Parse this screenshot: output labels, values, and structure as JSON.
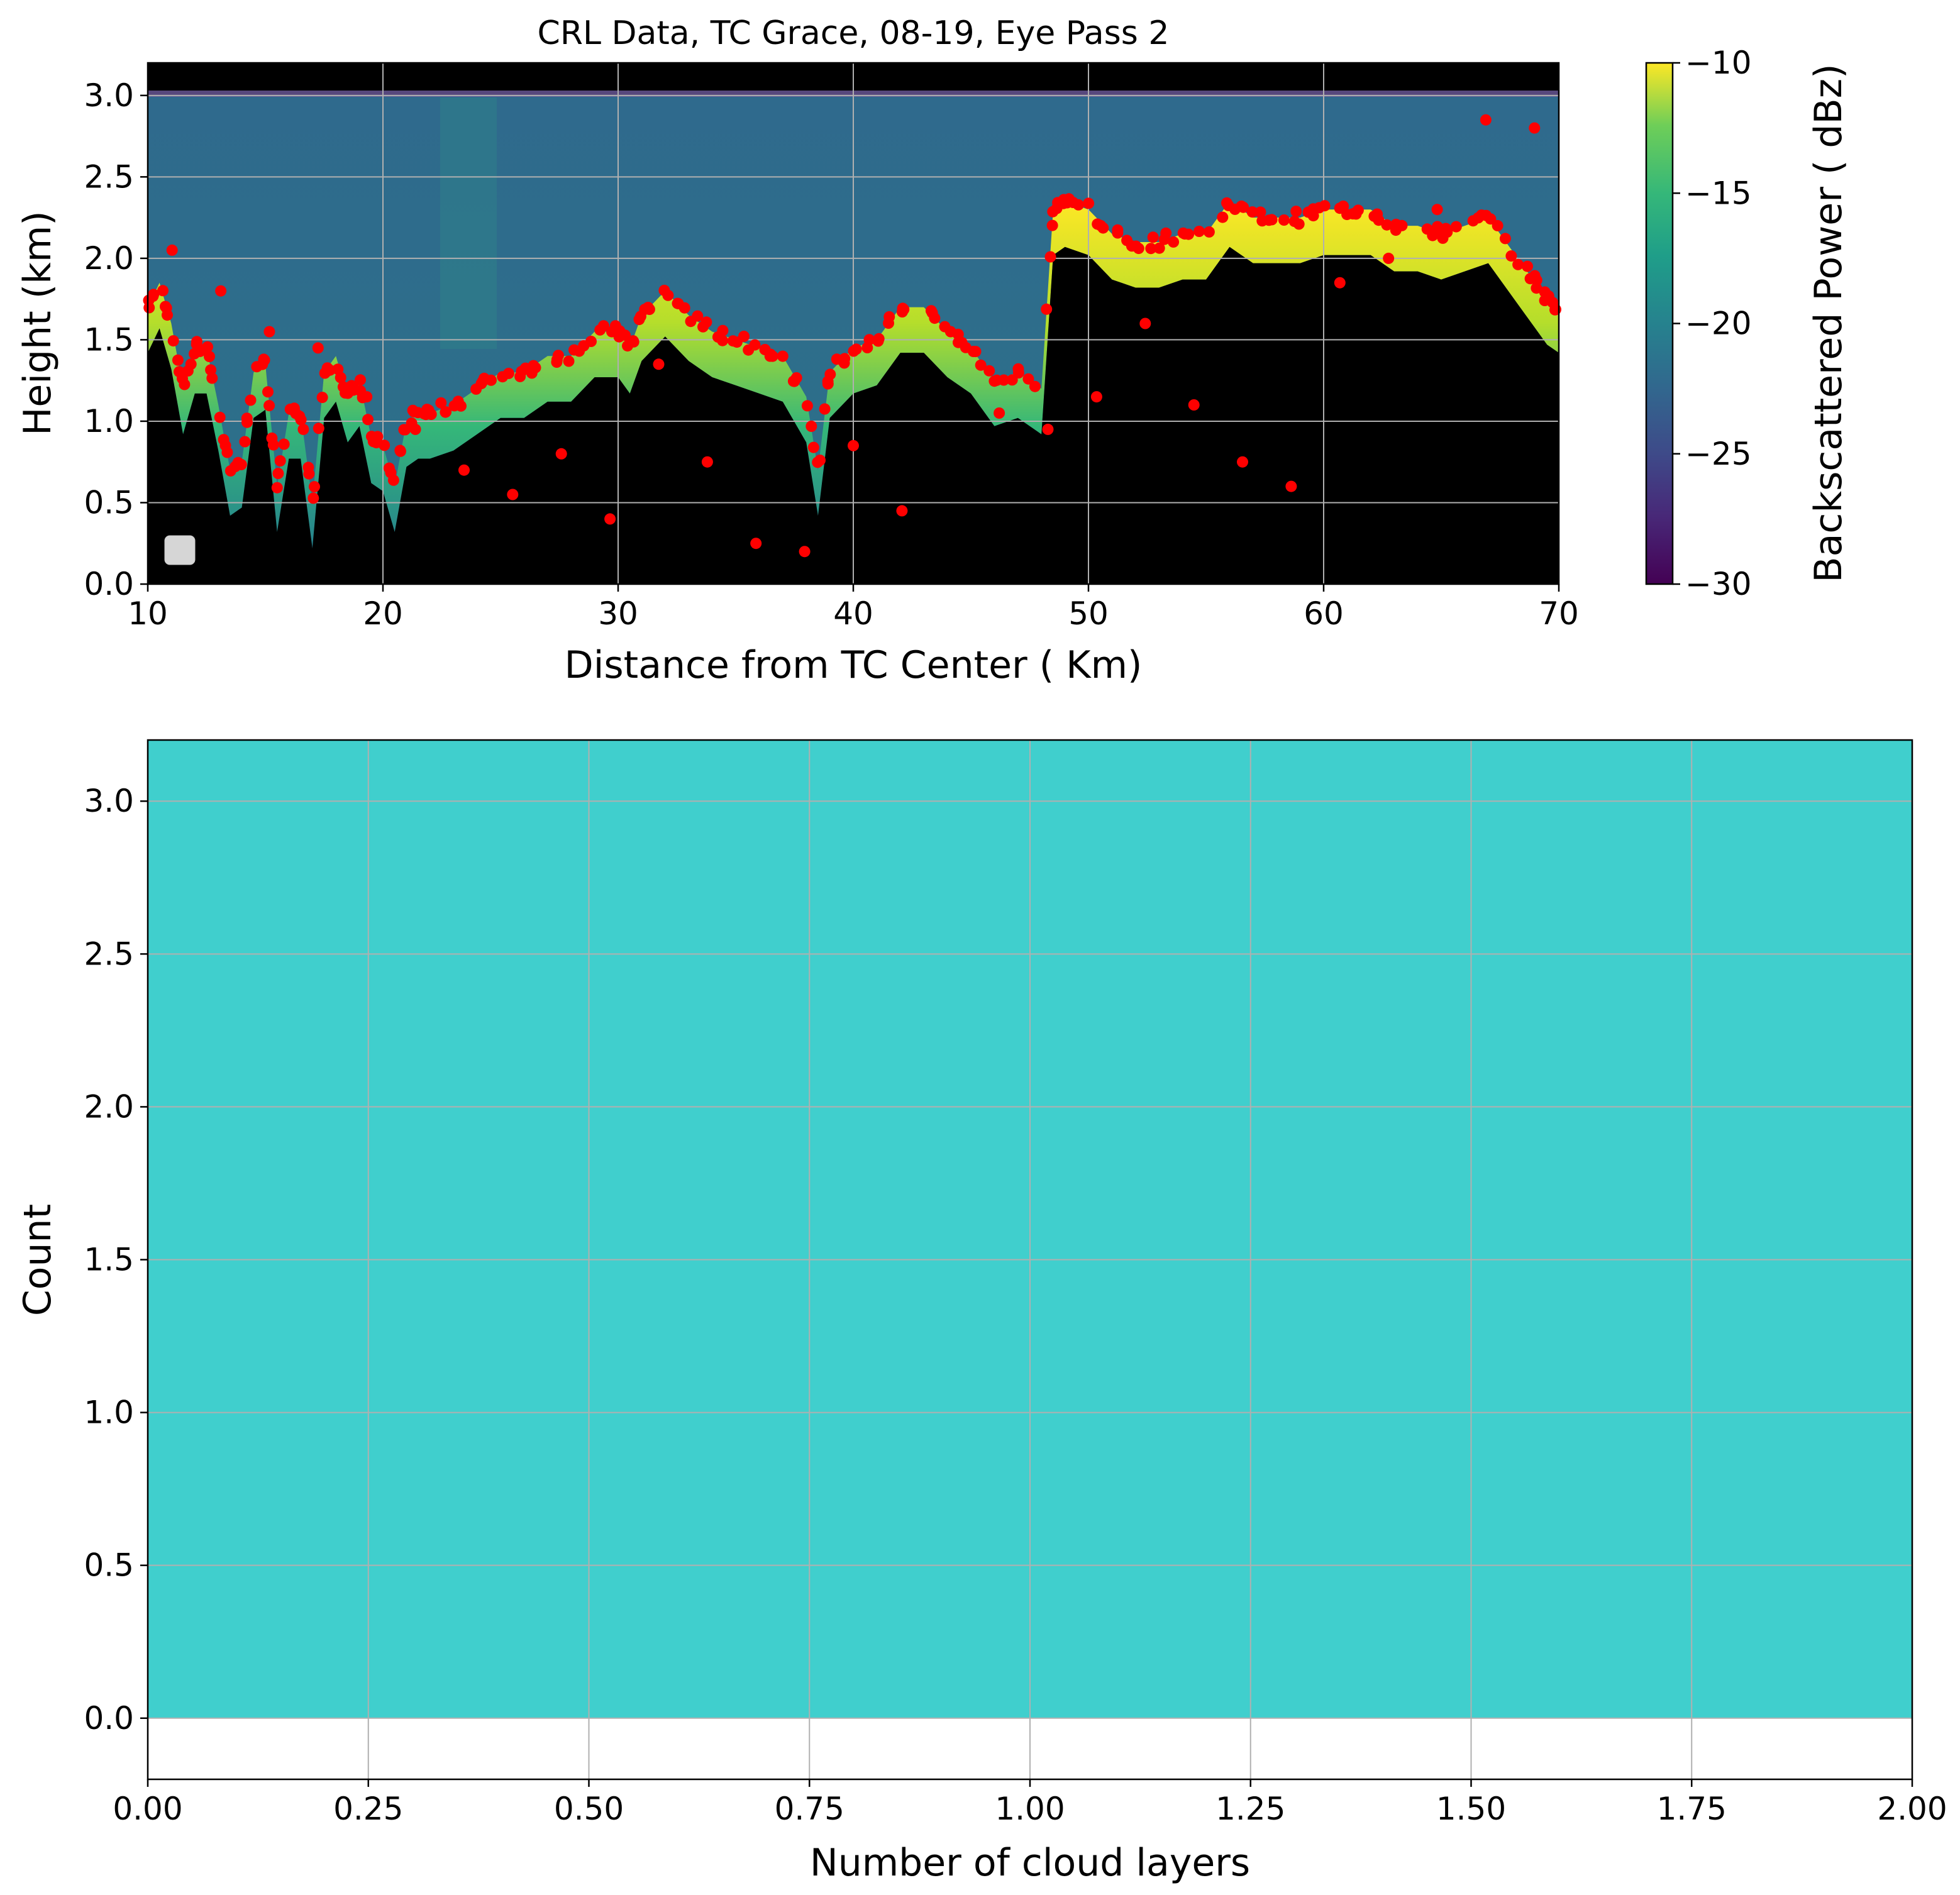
{
  "chart_data": [
    {
      "type": "heatmap",
      "title": "CRL Data, TC Grace, 08-19, Eye Pass 2",
      "xlabel": "Distance from TC Center ( Km)",
      "ylabel": "Height (km)",
      "xlim": [
        10,
        70
      ],
      "ylim": [
        0,
        3.2
      ],
      "xticks": [
        "10",
        "20",
        "30",
        "40",
        "50",
        "60",
        "70"
      ],
      "yticks": [
        "0.0",
        "0.5",
        "1.0",
        "1.5",
        "2.0",
        "2.5",
        "3.0"
      ],
      "grid": true,
      "legend": "lower-left (empty)",
      "colorbar": {
        "label": "Backscattered Power ( dBz)",
        "range": [
          -30,
          -10
        ],
        "ticks": [
          "−30",
          "−25",
          "−20",
          "−15",
          "−10"
        ],
        "colormap": "viridis"
      },
      "cloud_top": {
        "x": [
          10,
          10.5,
          11,
          11.5,
          12,
          12.5,
          13,
          13.5,
          14,
          14.5,
          15,
          15.5,
          16,
          16.5,
          17,
          17.5,
          18,
          18.5,
          19,
          19.5,
          20,
          20.5,
          21,
          21.5,
          22,
          23,
          24,
          25,
          26,
          27,
          28,
          29,
          30,
          30.5,
          31,
          32,
          33,
          34,
          35,
          36,
          37,
          38,
          38.5,
          39,
          40,
          41,
          42,
          43,
          44,
          45,
          46,
          47,
          48,
          48.5,
          49,
          50,
          51,
          52,
          53,
          54,
          55,
          56,
          57,
          58,
          59,
          60,
          61,
          62,
          63,
          64,
          65,
          66,
          67,
          68,
          69,
          69.5,
          70
        ],
        "y": [
          1.7,
          1.85,
          1.6,
          1.2,
          1.45,
          1.45,
          1.1,
          0.7,
          0.75,
          1.3,
          1.35,
          0.6,
          1.05,
          1.05,
          0.5,
          1.3,
          1.4,
          1.15,
          1.25,
          0.9,
          0.85,
          0.6,
          1.0,
          1.05,
          1.05,
          1.1,
          1.2,
          1.3,
          1.3,
          1.4,
          1.4,
          1.55,
          1.55,
          1.45,
          1.65,
          1.8,
          1.65,
          1.55,
          1.5,
          1.45,
          1.4,
          1.15,
          0.7,
          1.3,
          1.45,
          1.5,
          1.7,
          1.7,
          1.55,
          1.45,
          1.25,
          1.3,
          1.2,
          2.3,
          2.35,
          2.3,
          2.15,
          2.1,
          2.1,
          2.15,
          2.15,
          2.35,
          2.25,
          2.25,
          2.25,
          2.3,
          2.3,
          2.3,
          2.2,
          2.2,
          2.15,
          2.2,
          2.25,
          2.05,
          1.85,
          1.75,
          1.7
        ]
      },
      "detected_layers_km": [
        2.05,
        1.8,
        1.55,
        1.45,
        1.15,
        0.95,
        0.7,
        0.55,
        0.8,
        0.4,
        1.35,
        0.75,
        0.25,
        0.2,
        0.85,
        0.45,
        1.55,
        1.05,
        0.95,
        1.15,
        1.6,
        1.1,
        0.75,
        0.6,
        1.85,
        2.0,
        2.3,
        2.85,
        2.8
      ]
    },
    {
      "type": "bar",
      "title": "",
      "xlabel": "Number of cloud layers",
      "ylabel": "Count",
      "xlim": [
        0,
        2
      ],
      "ylim": [
        -0.2,
        3.2
      ],
      "xticks": [
        "0.00",
        "0.25",
        "0.50",
        "0.75",
        "1.00",
        "1.25",
        "1.50",
        "1.75",
        "2.00"
      ],
      "yticks": [
        "0.0",
        "0.5",
        "1.0",
        "1.5",
        "2.0",
        "2.5",
        "3.0"
      ],
      "grid": true,
      "bins": [
        {
          "x0": 0,
          "x1": 2,
          "count": 3.2
        }
      ],
      "bar_color": "#40cfcd"
    }
  ]
}
